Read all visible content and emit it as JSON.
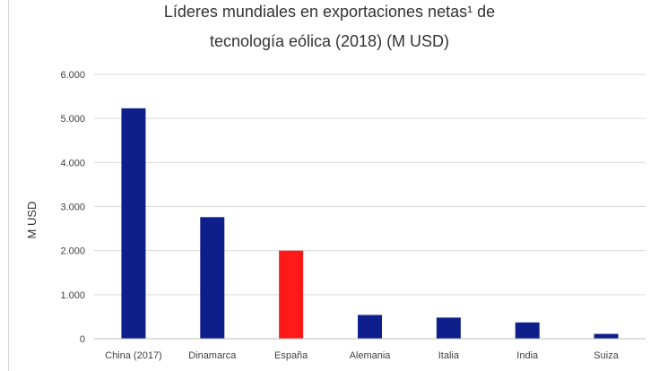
{
  "chart_data": {
    "type": "bar",
    "title_line1": "Líderes mundiales en exportaciones netas¹ de",
    "title_line2": "tecnología eólica (2018) (M USD)",
    "ylabel": "M USD",
    "xlabel": "",
    "categories": [
      "China (2017)",
      "Dinamarca",
      "España",
      "Alemania",
      "Italia",
      "India",
      "Suiza"
    ],
    "values": [
      5230,
      2760,
      2000,
      540,
      480,
      370,
      110
    ],
    "bar_colors": [
      "#0e1f8c",
      "#0e1f8c",
      "#ff1a1a",
      "#0e1f8c",
      "#0e1f8c",
      "#0e1f8c",
      "#0e1f8c"
    ],
    "ylim": [
      0,
      6000
    ],
    "yticks": [
      0,
      1000,
      2000,
      3000,
      4000,
      5000,
      6000
    ],
    "ytick_labels": [
      "0",
      "1.000",
      "2.000",
      "3.000",
      "4.000",
      "5.000",
      "6.000"
    ],
    "grid": true,
    "legend": "none"
  }
}
